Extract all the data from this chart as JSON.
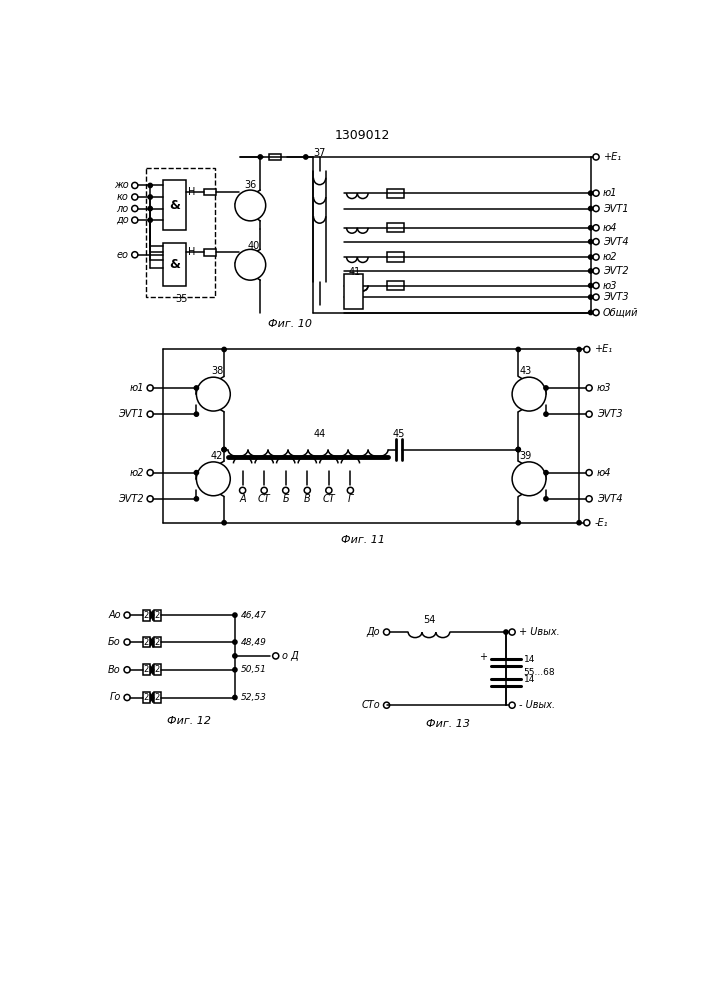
{
  "title": "1309012",
  "bg": "#ffffff",
  "lc": "#000000",
  "fig_labels": {
    "f10": "Фиг. 10",
    "f11": "Фиг. 11",
    "f12": "Фиг. 12",
    "f13": "Фиг. 13"
  },
  "inputs_f10": [
    "ж",
    "к",
    "л",
    "д",
    "е"
  ],
  "outputs_f10": [
    "+E₁",
    "ю1",
    "ЭVT1",
    "ю4",
    "ЭVT4",
    "ю2",
    "ЭVT2",
    "ю3",
    "ЭVT3",
    "Общий"
  ],
  "nums_f10": [
    "35",
    "36",
    "37",
    "40",
    "41"
  ],
  "labels_f11_left": [
    "ю1",
    "ЭVT1",
    "ю2",
    "ЭVT2"
  ],
  "labels_f11_right": [
    "+E₁",
    "ю3",
    "ЭVT3",
    "ю4",
    "ЭVT4",
    "-E₁"
  ],
  "nums_f11": [
    "38",
    "42",
    "43",
    "39",
    "44",
    "45"
  ],
  "taps_f11": [
    "A",
    "СТ",
    "Б",
    "В",
    "СТ",
    "Г"
  ],
  "inputs_f12": [
    "A",
    "Б",
    "В",
    "Г"
  ],
  "diode_nums_f12": [
    "46,47",
    "48,49",
    "50,51",
    "52,53"
  ],
  "output_f12": "Д",
  "input_f13": "Д",
  "num_f13": "54",
  "cap_nums_f13": [
    "14",
    "14"
  ],
  "cap_label_f13": "55...68",
  "out_pos_f13": "+ Uвых.",
  "out_neg_f13": "- Uвых.",
  "term_f13": "СТ"
}
